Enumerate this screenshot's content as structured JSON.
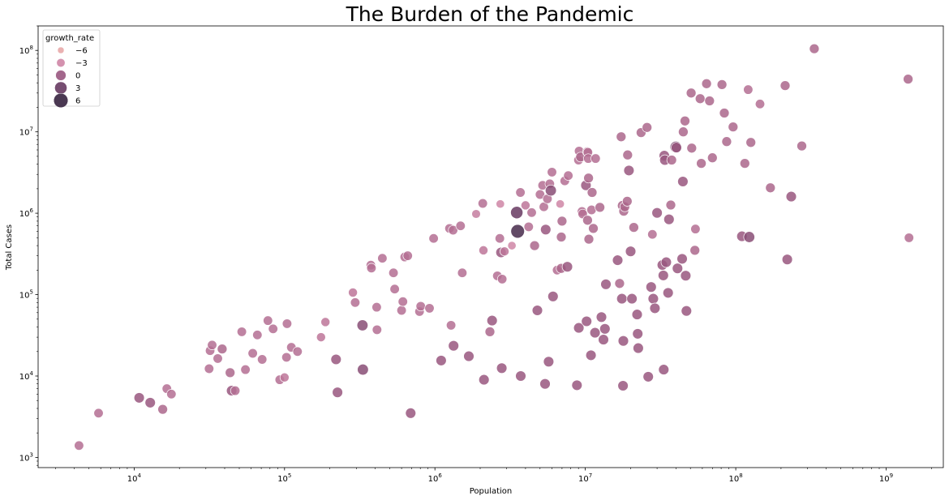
{
  "chart_data": {
    "type": "scatter",
    "title": "The Burden of the Pandemic",
    "xlabel": "Population",
    "ylabel": "Total Cases",
    "x_scale": "log",
    "y_scale": "log",
    "xlim": [
      2300,
      2400000000
    ],
    "ylim": [
      750,
      200000000
    ],
    "x_ticks": [
      {
        "base": "10",
        "exp": "4",
        "value": 10000
      },
      {
        "base": "10",
        "exp": "5",
        "value": 100000
      },
      {
        "base": "10",
        "exp": "6",
        "value": 1000000
      },
      {
        "base": "10",
        "exp": "7",
        "value": 10000000
      },
      {
        "base": "10",
        "exp": "8",
        "value": 100000000
      },
      {
        "base": "10",
        "exp": "9",
        "value": 1000000000
      }
    ],
    "y_ticks": [
      {
        "base": "10",
        "exp": "3",
        "value": 1000
      },
      {
        "base": "10",
        "exp": "4",
        "value": 10000
      },
      {
        "base": "10",
        "exp": "5",
        "value": 100000
      },
      {
        "base": "10",
        "exp": "6",
        "value": 1000000
      },
      {
        "base": "10",
        "exp": "7",
        "value": 10000000
      },
      {
        "base": "10",
        "exp": "8",
        "value": 100000000
      }
    ],
    "grid": false,
    "legend": {
      "title": "growth_rate",
      "placement": "top-left",
      "entries": [
        {
          "label": "−6",
          "value": -6,
          "color": "#e8a8a8"
        },
        {
          "label": "−3",
          "value": -3,
          "color": "#cf86a6"
        },
        {
          "label": "0",
          "value": 0,
          "color": "#99577f"
        },
        {
          "label": "3",
          "value": 3,
          "color": "#673a62"
        },
        {
          "label": "6",
          "value": 6,
          "color": "#36223f"
        }
      ]
    },
    "points": [
      {
        "x": 4300,
        "y": 1400,
        "g": -1.5
      },
      {
        "x": 5800,
        "y": 3500,
        "g": -1.5
      },
      {
        "x": 10800,
        "y": 5400,
        "g": 0
      },
      {
        "x": 12800,
        "y": 4700,
        "g": 0
      },
      {
        "x": 15500,
        "y": 3900,
        "g": -1
      },
      {
        "x": 16500,
        "y": 7000,
        "g": -1.5
      },
      {
        "x": 17700,
        "y": 6000,
        "g": -1.5
      },
      {
        "x": 31500,
        "y": 12300,
        "g": -1.5
      },
      {
        "x": 32000,
        "y": 20500,
        "g": -1.5
      },
      {
        "x": 33000,
        "y": 24000,
        "g": -1.5
      },
      {
        "x": 36000,
        "y": 16400,
        "g": -1.5
      },
      {
        "x": 38500,
        "y": 21500,
        "g": -1
      },
      {
        "x": 43500,
        "y": 11000,
        "g": -1
      },
      {
        "x": 44500,
        "y": 6600,
        "g": 0
      },
      {
        "x": 47000,
        "y": 6600,
        "g": -1.5
      },
      {
        "x": 52000,
        "y": 35000,
        "g": -1.5
      },
      {
        "x": 55000,
        "y": 12000,
        "g": -1.5
      },
      {
        "x": 61500,
        "y": 19000,
        "g": -1.5
      },
      {
        "x": 66000,
        "y": 32000,
        "g": -1.5
      },
      {
        "x": 71000,
        "y": 16000,
        "g": -1.5
      },
      {
        "x": 77500,
        "y": 48000,
        "g": -1.5
      },
      {
        "x": 84000,
        "y": 38000,
        "g": -1.5
      },
      {
        "x": 93000,
        "y": 9000,
        "g": -1.5
      },
      {
        "x": 100000,
        "y": 9600,
        "g": -2
      },
      {
        "x": 103000,
        "y": 17000,
        "g": -1.5
      },
      {
        "x": 104000,
        "y": 44000,
        "g": -1.5
      },
      {
        "x": 111000,
        "y": 22500,
        "g": -1.5
      },
      {
        "x": 122000,
        "y": 20000,
        "g": -1.5
      },
      {
        "x": 175000,
        "y": 30000,
        "g": -2
      },
      {
        "x": 187000,
        "y": 46000,
        "g": -2
      },
      {
        "x": 220000,
        "y": 16000,
        "g": 0
      },
      {
        "x": 225000,
        "y": 6300,
        "g": 0
      },
      {
        "x": 285000,
        "y": 106000,
        "g": -2
      },
      {
        "x": 295000,
        "y": 80000,
        "g": -1.5
      },
      {
        "x": 330000,
        "y": 42000,
        "g": 1
      },
      {
        "x": 332000,
        "y": 12000,
        "g": 1
      },
      {
        "x": 375000,
        "y": 230000,
        "g": -1.5
      },
      {
        "x": 378000,
        "y": 212000,
        "g": -1.5
      },
      {
        "x": 410000,
        "y": 70000,
        "g": -1.5
      },
      {
        "x": 412000,
        "y": 37000,
        "g": -1.5
      },
      {
        "x": 447000,
        "y": 280000,
        "g": -1.5
      },
      {
        "x": 530000,
        "y": 185000,
        "g": -1.5
      },
      {
        "x": 540000,
        "y": 117000,
        "g": -1.5
      },
      {
        "x": 600000,
        "y": 64000,
        "g": -1.5
      },
      {
        "x": 612000,
        "y": 82000,
        "g": -1.5
      },
      {
        "x": 630000,
        "y": 290000,
        "g": -1.5
      },
      {
        "x": 660000,
        "y": 300000,
        "g": -1.5
      },
      {
        "x": 690000,
        "y": 3500,
        "g": 0
      },
      {
        "x": 790000,
        "y": 62000,
        "g": -1.5
      },
      {
        "x": 805000,
        "y": 72000,
        "g": -1.5
      },
      {
        "x": 920000,
        "y": 68000,
        "g": -1.5
      },
      {
        "x": 980000,
        "y": 490000,
        "g": -1.5
      },
      {
        "x": 1100000,
        "y": 15500,
        "g": 0
      },
      {
        "x": 1250000,
        "y": 650000,
        "g": -1.5
      },
      {
        "x": 1280000,
        "y": 42000,
        "g": -1.5
      },
      {
        "x": 1320000,
        "y": 620000,
        "g": -1.5
      },
      {
        "x": 1330000,
        "y": 23500,
        "g": 0
      },
      {
        "x": 1480000,
        "y": 700000,
        "g": -1.5
      },
      {
        "x": 1520000,
        "y": 185000,
        "g": -1.5
      },
      {
        "x": 1680000,
        "y": 17500,
        "g": 0
      },
      {
        "x": 1880000,
        "y": 980000,
        "g": -2.5
      },
      {
        "x": 2080000,
        "y": 1320000,
        "g": -1.5
      },
      {
        "x": 2100000,
        "y": 350000,
        "g": -2
      },
      {
        "x": 2120000,
        "y": 9000,
        "g": 0
      },
      {
        "x": 2320000,
        "y": 35000,
        "g": -1
      },
      {
        "x": 2400000,
        "y": 48000,
        "g": 0
      },
      {
        "x": 2600000,
        "y": 170000,
        "g": -1.5
      },
      {
        "x": 2700000,
        "y": 490000,
        "g": -1.5
      },
      {
        "x": 2720000,
        "y": 1300000,
        "g": -3
      },
      {
        "x": 2750000,
        "y": 330000,
        "g": 0
      },
      {
        "x": 2780000,
        "y": 12500,
        "g": 0
      },
      {
        "x": 2800000,
        "y": 155000,
        "g": -1.5
      },
      {
        "x": 2900000,
        "y": 340000,
        "g": -2
      },
      {
        "x": 3250000,
        "y": 400000,
        "g": -3
      },
      {
        "x": 3500000,
        "y": 1020000,
        "g": 3
      },
      {
        "x": 3550000,
        "y": 600000,
        "g": 5
      },
      {
        "x": 3700000,
        "y": 1800000,
        "g": -1.5
      },
      {
        "x": 3720000,
        "y": 10000,
        "g": 0
      },
      {
        "x": 4000000,
        "y": 1250000,
        "g": -2
      },
      {
        "x": 4200000,
        "y": 680000,
        "g": -1.5
      },
      {
        "x": 4400000,
        "y": 1020000,
        "g": -1.5
      },
      {
        "x": 4600000,
        "y": 400000,
        "g": -1
      },
      {
        "x": 4800000,
        "y": 64000,
        "g": 0
      },
      {
        "x": 5000000,
        "y": 1700000,
        "g": -1.5
      },
      {
        "x": 5200000,
        "y": 2200000,
        "g": -1.5
      },
      {
        "x": 5300000,
        "y": 1200000,
        "g": -1.5
      },
      {
        "x": 5400000,
        "y": 8000,
        "g": 0
      },
      {
        "x": 5450000,
        "y": 630000,
        "g": 0
      },
      {
        "x": 5600000,
        "y": 1500000,
        "g": -1.5
      },
      {
        "x": 5700000,
        "y": 15000,
        "g": 0
      },
      {
        "x": 5800000,
        "y": 2300000,
        "g": -1.5
      },
      {
        "x": 5900000,
        "y": 1900000,
        "g": 1
      },
      {
        "x": 6000000,
        "y": 3200000,
        "g": -1.5
      },
      {
        "x": 6100000,
        "y": 95000,
        "g": 0
      },
      {
        "x": 6500000,
        "y": 200000,
        "g": -1.5
      },
      {
        "x": 6800000,
        "y": 1300000,
        "g": -3
      },
      {
        "x": 6900000,
        "y": 210000,
        "g": -1
      },
      {
        "x": 6920000,
        "y": 510000,
        "g": -1
      },
      {
        "x": 7000000,
        "y": 800000,
        "g": -1
      },
      {
        "x": 7300000,
        "y": 2500000,
        "g": -1.5
      },
      {
        "x": 7600000,
        "y": 220000,
        "g": 0
      },
      {
        "x": 7700000,
        "y": 2900000,
        "g": -1.5
      },
      {
        "x": 8800000,
        "y": 7700,
        "g": 0
      },
      {
        "x": 9000000,
        "y": 4500000,
        "g": -1.5
      },
      {
        "x": 9050000,
        "y": 39000,
        "g": 0
      },
      {
        "x": 9100000,
        "y": 5800000,
        "g": -1.5
      },
      {
        "x": 9300000,
        "y": 4900000,
        "g": -1
      },
      {
        "x": 9500000,
        "y": 1050000,
        "g": -1.5
      },
      {
        "x": 9600000,
        "y": 980000,
        "g": -1.5
      },
      {
        "x": 10100000,
        "y": 2200000,
        "g": 0
      },
      {
        "x": 10200000,
        "y": 47000,
        "g": 0
      },
      {
        "x": 10300000,
        "y": 5700000,
        "g": -1.5
      },
      {
        "x": 10350000,
        "y": 820000,
        "g": -1
      },
      {
        "x": 10400000,
        "y": 5600000,
        "g": -1.5
      },
      {
        "x": 10450000,
        "y": 4700000,
        "g": -1.5
      },
      {
        "x": 10500000,
        "y": 2700000,
        "g": -1
      },
      {
        "x": 10550000,
        "y": 480000,
        "g": -1
      },
      {
        "x": 10900000,
        "y": 18000,
        "g": 0
      },
      {
        "x": 11000000,
        "y": 1100000,
        "g": -1.5
      },
      {
        "x": 11100000,
        "y": 1800000,
        "g": -1
      },
      {
        "x": 11300000,
        "y": 650000,
        "g": -1
      },
      {
        "x": 11600000,
        "y": 34000,
        "g": 0
      },
      {
        "x": 11700000,
        "y": 4700000,
        "g": -1.5
      },
      {
        "x": 12500000,
        "y": 1180000,
        "g": -1
      },
      {
        "x": 12800000,
        "y": 53000,
        "g": 0
      },
      {
        "x": 13200000,
        "y": 28000,
        "g": 0
      },
      {
        "x": 13500000,
        "y": 38000,
        "g": 0
      },
      {
        "x": 13700000,
        "y": 134000,
        "g": 0
      },
      {
        "x": 16400000,
        "y": 265000,
        "g": 0
      },
      {
        "x": 16900000,
        "y": 137000,
        "g": -1
      },
      {
        "x": 17300000,
        "y": 8700000,
        "g": -1
      },
      {
        "x": 17500000,
        "y": 89000,
        "g": 0
      },
      {
        "x": 17600000,
        "y": 1240000,
        "g": -1
      },
      {
        "x": 17800000,
        "y": 7600,
        "g": 0
      },
      {
        "x": 17900000,
        "y": 27000,
        "g": 0
      },
      {
        "x": 18000000,
        "y": 1060000,
        "g": -1
      },
      {
        "x": 18300000,
        "y": 1200000,
        "g": -1
      },
      {
        "x": 19000000,
        "y": 1400000,
        "g": -1
      },
      {
        "x": 19100000,
        "y": 5200000,
        "g": -1
      },
      {
        "x": 19500000,
        "y": 3350000,
        "g": 0
      },
      {
        "x": 20000000,
        "y": 340000,
        "g": 0
      },
      {
        "x": 20400000,
        "y": 89000,
        "g": 0
      },
      {
        "x": 21000000,
        "y": 670000,
        "g": -1
      },
      {
        "x": 22100000,
        "y": 57000,
        "g": 0
      },
      {
        "x": 22300000,
        "y": 33000,
        "g": 0
      },
      {
        "x": 22500000,
        "y": 22000,
        "g": 0
      },
      {
        "x": 23500000,
        "y": 9800000,
        "g": -1
      },
      {
        "x": 25700000,
        "y": 11300000,
        "g": -1
      },
      {
        "x": 26200000,
        "y": 9800,
        "g": 0
      },
      {
        "x": 27400000,
        "y": 124000,
        "g": 0
      },
      {
        "x": 27900000,
        "y": 550000,
        "g": -1.5
      },
      {
        "x": 28300000,
        "y": 89000,
        "g": 0
      },
      {
        "x": 29000000,
        "y": 68000,
        "g": 0
      },
      {
        "x": 30000000,
        "y": 1010000,
        "g": 0
      },
      {
        "x": 32500000,
        "y": 231000,
        "g": 0
      },
      {
        "x": 33000000,
        "y": 172000,
        "g": 0
      },
      {
        "x": 33200000,
        "y": 12000,
        "g": 0
      },
      {
        "x": 33500000,
        "y": 5100000,
        "g": 0
      },
      {
        "x": 33800000,
        "y": 4500000,
        "g": 0
      },
      {
        "x": 34500000,
        "y": 250000,
        "g": 0
      },
      {
        "x": 35500000,
        "y": 105000,
        "g": 0
      },
      {
        "x": 36000000,
        "y": 840000,
        "g": 0
      },
      {
        "x": 37000000,
        "y": 1260000,
        "g": -1
      },
      {
        "x": 37500000,
        "y": 4500000,
        "g": -1
      },
      {
        "x": 40000000,
        "y": 6500000,
        "g": 2
      },
      {
        "x": 40300000,
        "y": 6400000,
        "g": 0
      },
      {
        "x": 41000000,
        "y": 210000,
        "g": 0
      },
      {
        "x": 44000000,
        "y": 275000,
        "g": 0
      },
      {
        "x": 44500000,
        "y": 2450000,
        "g": 0
      },
      {
        "x": 44800000,
        "y": 10000000,
        "g": -1
      },
      {
        "x": 46000000,
        "y": 13600000,
        "g": -1
      },
      {
        "x": 46500000,
        "y": 171000,
        "g": 0
      },
      {
        "x": 47000000,
        "y": 63000,
        "g": 0
      },
      {
        "x": 50500000,
        "y": 30000000,
        "g": -1
      },
      {
        "x": 51000000,
        "y": 6300000,
        "g": -1
      },
      {
        "x": 53500000,
        "y": 350000,
        "g": -1
      },
      {
        "x": 54000000,
        "y": 640000,
        "g": -1.5
      },
      {
        "x": 58000000,
        "y": 25500000,
        "g": -1
      },
      {
        "x": 59000000,
        "y": 4100000,
        "g": -1
      },
      {
        "x": 64000000,
        "y": 39000000,
        "g": -1
      },
      {
        "x": 67000000,
        "y": 24000000,
        "g": -1
      },
      {
        "x": 70000000,
        "y": 4800000,
        "g": -1
      },
      {
        "x": 81000000,
        "y": 38000000,
        "g": -1
      },
      {
        "x": 84000000,
        "y": 17000000,
        "g": -1
      },
      {
        "x": 87000000,
        "y": 7600000,
        "g": -1
      },
      {
        "x": 96000000,
        "y": 11500000,
        "g": -1
      },
      {
        "x": 110000000,
        "y": 520000,
        "g": 0
      },
      {
        "x": 115000000,
        "y": 4100000,
        "g": -1
      },
      {
        "x": 121000000,
        "y": 33000000,
        "g": -1.5
      },
      {
        "x": 123000000,
        "y": 510000,
        "g": 1
      },
      {
        "x": 126000000,
        "y": 7400000,
        "g": -1
      },
      {
        "x": 145000000,
        "y": 22000000,
        "g": -1.5
      },
      {
        "x": 170000000,
        "y": 2050000,
        "g": -1
      },
      {
        "x": 213000000,
        "y": 37000000,
        "g": -1
      },
      {
        "x": 220000000,
        "y": 270000,
        "g": 0
      },
      {
        "x": 234000000,
        "y": 1600000,
        "g": 0
      },
      {
        "x": 275000000,
        "y": 6700000,
        "g": -1
      },
      {
        "x": 333000000,
        "y": 105000000,
        "g": -1
      },
      {
        "x": 1400000000,
        "y": 44500000,
        "g": -1
      },
      {
        "x": 1420000000,
        "y": 500000,
        "g": -1.5
      }
    ]
  }
}
